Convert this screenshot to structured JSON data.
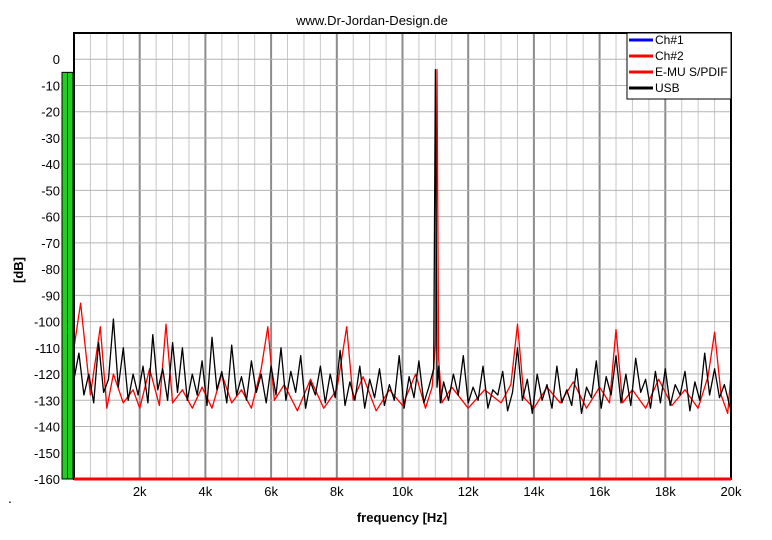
{
  "chart_data": {
    "type": "line",
    "title": "www.Dr-Jordan-Design.de",
    "xlabel": "frequency [Hz]",
    "ylabel": "[dB]",
    "xlim": [
      0,
      20000
    ],
    "ylim": [
      -160,
      10
    ],
    "x_ticks": [
      {
        "value": 2000,
        "label": "2k"
      },
      {
        "value": 4000,
        "label": "4k"
      },
      {
        "value": 6000,
        "label": "6k"
      },
      {
        "value": 8000,
        "label": "8k"
      },
      {
        "value": 10000,
        "label": "10k"
      },
      {
        "value": 12000,
        "label": "12k"
      },
      {
        "value": 14000,
        "label": "14k"
      },
      {
        "value": 16000,
        "label": "16k"
      },
      {
        "value": 18000,
        "label": "18k"
      },
      {
        "value": 20000,
        "label": "20k"
      }
    ],
    "y_ticks": [
      {
        "value": 0,
        "label": "0"
      },
      {
        "value": -10,
        "label": "-10"
      },
      {
        "value": -20,
        "label": "-20"
      },
      {
        "value": -30,
        "label": "-30"
      },
      {
        "value": -40,
        "label": "-40"
      },
      {
        "value": -50,
        "label": "-50"
      },
      {
        "value": -60,
        "label": "-60"
      },
      {
        "value": -70,
        "label": "-70"
      },
      {
        "value": -80,
        "label": "-80"
      },
      {
        "value": -90,
        "label": "-90"
      },
      {
        "value": -100,
        "label": "-100"
      },
      {
        "value": -110,
        "label": "-110"
      },
      {
        "value": -120,
        "label": "-120"
      },
      {
        "value": -130,
        "label": "-130"
      },
      {
        "value": -140,
        "label": "-140"
      },
      {
        "value": -150,
        "label": "-150"
      },
      {
        "value": -160,
        "label": "-160"
      }
    ],
    "grid": true,
    "legend_position": "top-right",
    "level_meter": {
      "peak_db": -5,
      "color": "#22cc22"
    },
    "series": [
      {
        "name": "Ch#1",
        "color": "#0000ff",
        "x": [],
        "y": []
      },
      {
        "name": "Ch#2",
        "color": "#ff0000",
        "x": [
          0,
          200,
          500,
          800,
          1000,
          1200,
          1500,
          1800,
          2000,
          2300,
          2600,
          2800,
          3000,
          3300,
          3600,
          3900,
          4200,
          4500,
          4800,
          5100,
          5400,
          5700,
          5900,
          6100,
          6400,
          6800,
          7200,
          7600,
          8000,
          8300,
          8500,
          8800,
          9200,
          9600,
          10000,
          10400,
          10700,
          10900,
          11000,
          11050,
          11100,
          11200,
          11500,
          12000,
          12500,
          13000,
          13300,
          13500,
          13700,
          14000,
          14400,
          14800,
          15200,
          15600,
          16000,
          16300,
          16500,
          16700,
          17000,
          17400,
          17800,
          18200,
          18600,
          19000,
          19300,
          19500,
          19700,
          19900,
          20000
        ],
        "y": [
          -110,
          -93,
          -128,
          -102,
          -133,
          -120,
          -131,
          -126,
          -133,
          -118,
          -132,
          -101,
          -131,
          -126,
          -133,
          -125,
          -133,
          -120,
          -131,
          -126,
          -133,
          -118,
          -102,
          -130,
          -124,
          -134,
          -122,
          -133,
          -126,
          -102,
          -130,
          -121,
          -134,
          -126,
          -132,
          -120,
          -133,
          -125,
          -109,
          -4,
          -114,
          -131,
          -125,
          -133,
          -126,
          -131,
          -124,
          -101,
          -129,
          -133,
          -125,
          -131,
          -123,
          -133,
          -125,
          -131,
          -103,
          -131,
          -126,
          -133,
          -122,
          -132,
          -126,
          -133,
          -121,
          -104,
          -128,
          -135,
          -120
        ]
      },
      {
        "name": "E-MU S/PDIF",
        "color": "#ff0000",
        "x": [],
        "y": []
      },
      {
        "name": "USB",
        "color": "#000000",
        "x": [
          0,
          150,
          300,
          450,
          600,
          750,
          900,
          1050,
          1200,
          1350,
          1500,
          1650,
          1800,
          1950,
          2100,
          2250,
          2400,
          2550,
          2700,
          2850,
          3000,
          3150,
          3300,
          3450,
          3600,
          3750,
          3900,
          4050,
          4200,
          4350,
          4500,
          4650,
          4800,
          4950,
          5100,
          5250,
          5400,
          5550,
          5700,
          5850,
          6000,
          6150,
          6300,
          6450,
          6600,
          6750,
          6900,
          7050,
          7200,
          7350,
          7500,
          7650,
          7800,
          7950,
          8100,
          8250,
          8400,
          8550,
          8700,
          8850,
          9000,
          9150,
          9300,
          9450,
          9600,
          9750,
          9900,
          10050,
          10200,
          10350,
          10500,
          10650,
          10800,
          10950,
          11000,
          11050,
          11100,
          11150,
          11250,
          11400,
          11550,
          11700,
          11850,
          12000,
          12150,
          12300,
          12450,
          12600,
          12750,
          12900,
          13050,
          13200,
          13350,
          13500,
          13650,
          13800,
          13950,
          14100,
          14250,
          14400,
          14550,
          14700,
          14850,
          15000,
          15150,
          15300,
          15450,
          15600,
          15750,
          15900,
          16050,
          16200,
          16350,
          16500,
          16650,
          16800,
          16950,
          17100,
          17250,
          17400,
          17550,
          17700,
          17850,
          18000,
          18150,
          18300,
          18450,
          18600,
          18750,
          18900,
          19050,
          19200,
          19350,
          19500,
          19650,
          19800,
          20000
        ],
        "y": [
          -122,
          -112,
          -128,
          -120,
          -131,
          -108,
          -127,
          -122,
          -99,
          -125,
          -110,
          -130,
          -120,
          -128,
          -117,
          -131,
          -105,
          -126,
          -118,
          -130,
          -108,
          -127,
          -110,
          -130,
          -120,
          -128,
          -115,
          -132,
          -106,
          -126,
          -119,
          -131,
          -109,
          -128,
          -121,
          -130,
          -115,
          -127,
          -120,
          -131,
          -117,
          -128,
          -110,
          -130,
          -119,
          -127,
          -113,
          -133,
          -123,
          -128,
          -117,
          -131,
          -120,
          -129,
          -111,
          -132,
          -123,
          -130,
          -117,
          -133,
          -122,
          -129,
          -118,
          -132,
          -124,
          -130,
          -113,
          -133,
          -121,
          -129,
          -115,
          -131,
          -125,
          -118,
          -4,
          -125,
          -117,
          -131,
          -123,
          -130,
          -120,
          -128,
          -113,
          -131,
          -125,
          -130,
          -117,
          -133,
          -126,
          -128,
          -119,
          -134,
          -127,
          -110,
          -130,
          -122,
          -135,
          -120,
          -130,
          -124,
          -133,
          -117,
          -131,
          -126,
          -132,
          -118,
          -135,
          -125,
          -129,
          -115,
          -133,
          -121,
          -128,
          -113,
          -131,
          -120,
          -132,
          -114,
          -127,
          -122,
          -133,
          -119,
          -131,
          -118,
          -132,
          -124,
          -128,
          -119,
          -134,
          -123,
          -130,
          -112,
          -128,
          -118,
          -129,
          -124,
          -134
        ]
      }
    ]
  }
}
